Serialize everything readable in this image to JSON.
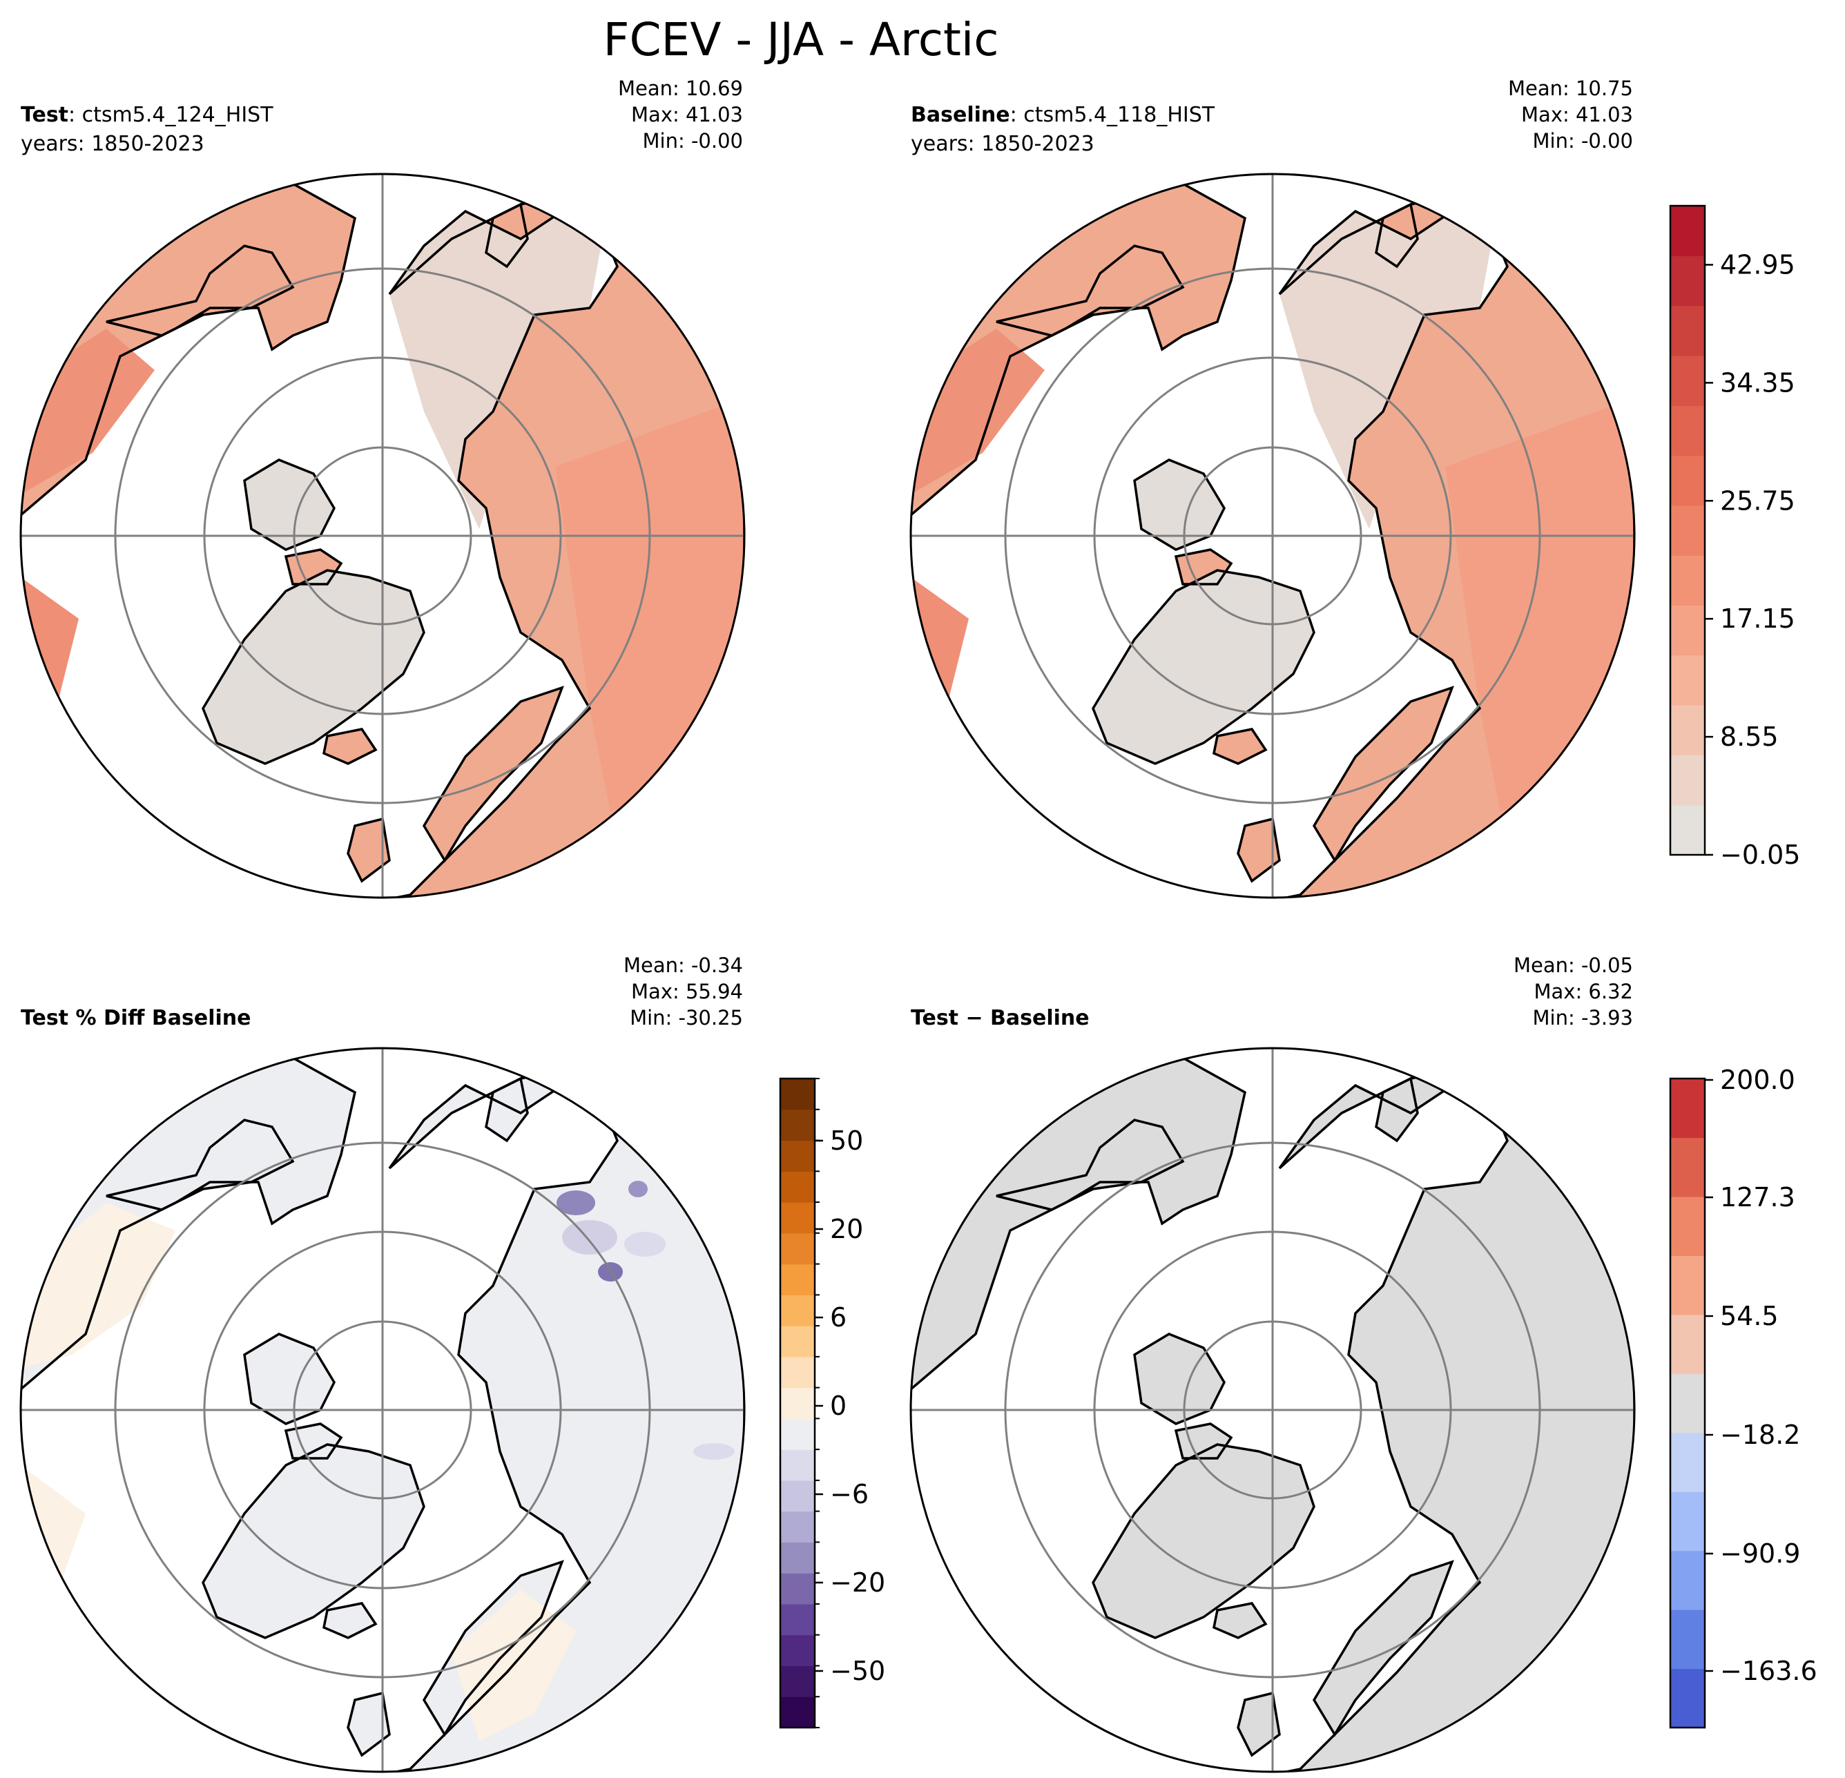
{
  "figure": {
    "title": "FCEV - JJA - Arctic"
  },
  "chart_data": [
    {
      "type": "heatmap",
      "projection": "north polar stereographic",
      "title_bold": "Test",
      "title_rest": ": ctsm5.4_124_HIST",
      "years": "years: 1850-2023",
      "stats": {
        "mean": "Mean: 10.69",
        "max": "Max: 41.03",
        "min": "Min: -0.00"
      },
      "colormap": "Reds (light grey to dark red)",
      "colorbar": "shared with Baseline panel"
    },
    {
      "type": "heatmap",
      "projection": "north polar stereographic",
      "title_bold": "Baseline",
      "title_rest": ": ctsm5.4_118_HIST",
      "years": "years: 1850-2023",
      "stats": {
        "mean": "Mean: 10.75",
        "max": "Max: 41.03",
        "min": "Min: -0.00"
      },
      "colormap": "Reds (light grey to dark red)",
      "colorbar": {
        "tick_labels": [
          "42.95",
          "34.35",
          "25.75",
          "17.15",
          "8.55",
          "−0.05"
        ],
        "tick_values": [
          42.95,
          34.35,
          25.75,
          17.15,
          8.55,
          -0.05
        ],
        "vmin": -0.05,
        "vmax": 47.25,
        "colors": [
          "#e4e0dc",
          "#ecd4c8",
          "#f2c4b0",
          "#f5b49a",
          "#f4a387",
          "#f29376",
          "#ee8266",
          "#e87358",
          "#e06450",
          "#d75446",
          "#cc423c",
          "#be2e34",
          "#b41a2c"
        ]
      }
    },
    {
      "type": "heatmap",
      "projection": "north polar stereographic",
      "title_bold": "Test % Diff Baseline",
      "stats": {
        "mean": "Mean: -0.34",
        "max": "Max: 55.94",
        "min": "Min: -30.25"
      },
      "colormap": "PuOr (purple to orange, near-white at 0)",
      "colorbar": {
        "tick_labels": [
          "50",
          "20",
          "6",
          "0",
          "−6",
          "−20",
          "−50"
        ],
        "colors": [
          "#2d0550",
          "#3f1768",
          "#4f2a80",
          "#63459a",
          "#7b68ab",
          "#958ebf",
          "#afabd2",
          "#c8c5e1",
          "#dcdbec",
          "#eceef2",
          "#fbeedd",
          "#fde0bb",
          "#fdcc8a",
          "#fbb45e",
          "#f59c3d",
          "#e8852a",
          "#d97015",
          "#c15d0a",
          "#a54c07",
          "#873d06",
          "#6f3004"
        ]
      }
    },
    {
      "type": "heatmap",
      "projection": "north polar stereographic",
      "title_bold": "Test − Baseline",
      "stats": {
        "mean": "Mean: -0.05",
        "max": "Max:  6.32",
        "min": "Min: -3.93"
      },
      "colormap": "coolwarm (blue to red, grey at 0)",
      "colorbar": {
        "tick_labels": [
          "200.0",
          "127.3",
          "54.5",
          "−18.2",
          "−90.9",
          "−163.6"
        ],
        "colors": [
          "#4a5ed4",
          "#6180e4",
          "#83a2f2",
          "#a3bdf9",
          "#c3d3f7",
          "#dcdcdc",
          "#f2c5b1",
          "#f4a686",
          "#ee8767",
          "#dd604d",
          "#c93537"
        ]
      }
    }
  ]
}
